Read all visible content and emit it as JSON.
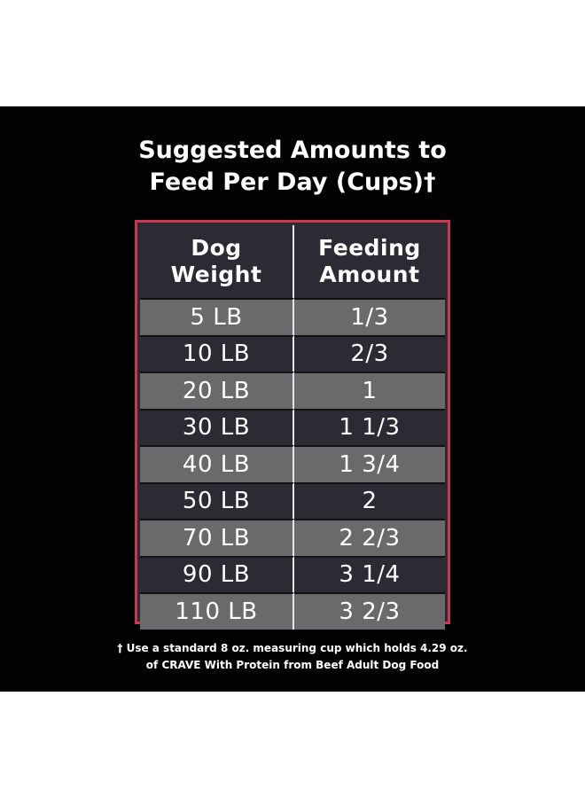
{
  "title": {
    "line1": "Suggested Amounts to",
    "line2": "Feed Per Day (Cups)†"
  },
  "table": {
    "headers": {
      "col1_line1": "Dog",
      "col1_line2": "Weight",
      "col2_line1": "Feeding",
      "col2_line2": "Amount"
    },
    "rows": [
      {
        "weight": "5 LB",
        "amount": "1/3"
      },
      {
        "weight": "10 LB",
        "amount": "2/3"
      },
      {
        "weight": "20 LB",
        "amount": "1"
      },
      {
        "weight": "30 LB",
        "amount": "1 1/3"
      },
      {
        "weight": "40 LB",
        "amount": "1 3/4"
      },
      {
        "weight": "50 LB",
        "amount": "2"
      },
      {
        "weight": "70 LB",
        "amount": "2 2/3"
      },
      {
        "weight": "90 LB",
        "amount": "3 1/4"
      },
      {
        "weight": "110 LB",
        "amount": "3 2/3"
      }
    ]
  },
  "footnote": {
    "line1": "† Use a standard 8 oz. measuring cup which holds 4.29 oz.",
    "line2": "of CRAVE With Protein from Beef Adult Dog Food"
  },
  "colors": {
    "background": "#020202",
    "frame": "#c8384e",
    "row_light": "#6a6a6c",
    "row_dark": "#2c2a33",
    "text": "#ffffff"
  }
}
